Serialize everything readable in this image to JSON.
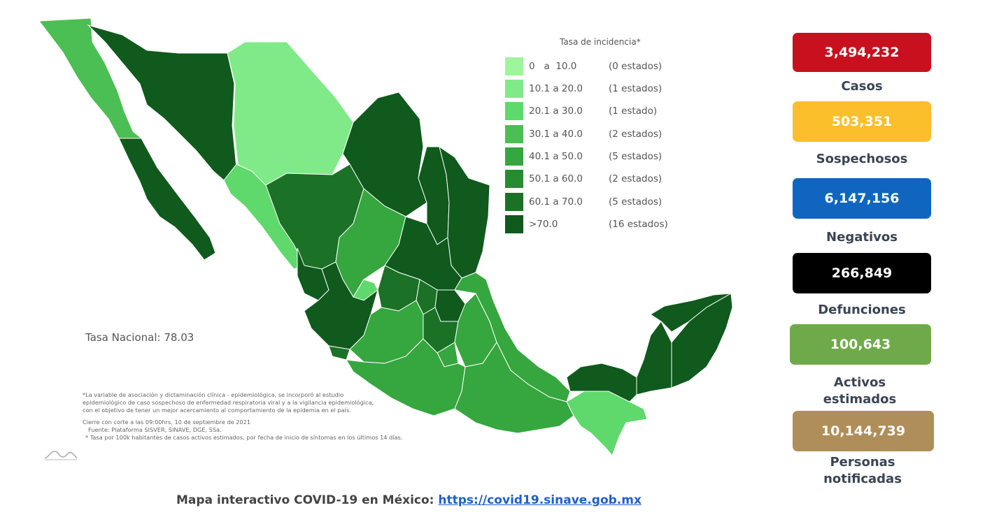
{
  "legend": {
    "title": "Tasa de incidencia*",
    "items": [
      {
        "range": "0   a  10.0",
        "count": "(0 estados)",
        "color": "#9ef59c"
      },
      {
        "range": "10.1 a 20.0",
        "count": "(1 estados)",
        "color": "#80ea88"
      },
      {
        "range": "20.1 a 30.0",
        "count": "(1 estado)",
        "color": "#5fd86c"
      },
      {
        "range": "30.1 a 40.0",
        "count": "(2 estados)",
        "color": "#4bbf53"
      },
      {
        "range": "40.1 a 50.0",
        "count": "(5 estados)",
        "color": "#36a63f"
      },
      {
        "range": "50.1 a 60.0",
        "count": "(2 estados)",
        "color": "#268c30"
      },
      {
        "range": "60.1 a 70.0",
        "count": "(5 estados)",
        "color": "#1b7126"
      },
      {
        "range": ">70.0",
        "count": "(16 estados)",
        "color": "#0f5a1c"
      }
    ]
  },
  "national_rate": "Tasa Nacional: 78.03",
  "footnotes": {
    "lines": [
      "*La variable de asociación y dictaminación clínica - epidemiológica, se incorporó al estudio",
      "epidemiológico de caso sospechoso de enfermedad respiratoria viral y a la vigilancia epidemiológica,",
      "con el objetivo de tener un mejor acercamiento al comportamiento de la epidemia en el país."
    ],
    "cutoff": "Cierre con corte a las 09:00hrs, 10 de septiembre de 2021",
    "source": "Fuente: Plataforma SISVER, SINAVE, DGE, SSa.",
    "rate_note": "* Tasa por 100k habitantes de casos activos estimados, por fecha de inicio de síntomas en los últimos 14 días."
  },
  "stats": [
    {
      "id": "casos",
      "value": "3,494,232",
      "label": "Casos",
      "color": "#c8101e"
    },
    {
      "id": "sospechosos",
      "value": "503,351",
      "label": "Sospechosos",
      "color": "#fbbf2b"
    },
    {
      "id": "negativos",
      "value": "6,147,156",
      "label": "Negativos",
      "color": "#1066bf"
    },
    {
      "id": "defunciones",
      "value": "266,849",
      "label": "Defunciones",
      "color": "#000000"
    },
    {
      "id": "activos",
      "value": "100,643",
      "label": "Activos estimados",
      "color": "#6faa4a"
    },
    {
      "id": "notificadas",
      "value": "10,144,739",
      "label": "Personas notificadas",
      "color": "#b08e5a"
    }
  ],
  "bottom": {
    "text": "Mapa interactivo COVID-19 en México: ",
    "link": "https://covid19.sinave.gob.mx"
  }
}
